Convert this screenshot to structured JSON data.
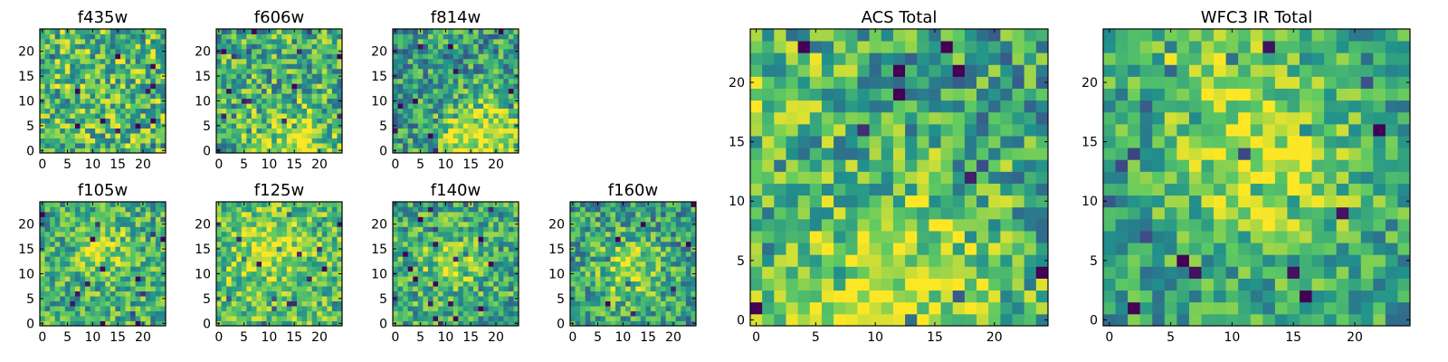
{
  "colors": {
    "background": "#ffffff",
    "axis": "#000000",
    "colormap": "viridis",
    "colormap_stops": [
      "#440154",
      "#3b528b",
      "#21918c",
      "#5ec962",
      "#fde725"
    ]
  },
  "chart_data": [
    {
      "type": "heatmap",
      "title": "f435w",
      "grid_size": [
        25,
        25
      ],
      "xticks": [
        0,
        5,
        10,
        15,
        20
      ],
      "yticks": [
        0,
        5,
        10,
        15,
        20
      ],
      "xlabel": "",
      "ylabel": "",
      "grid": false,
      "colormap": "viridis",
      "value_range": [
        0,
        1
      ],
      "pattern": {
        "base": 0.68,
        "noise": 0.32,
        "blobs": []
      }
    },
    {
      "type": "heatmap",
      "title": "f606w",
      "grid_size": [
        25,
        25
      ],
      "xticks": [
        0,
        5,
        10,
        15,
        20
      ],
      "yticks": [
        0,
        5,
        10,
        15,
        20
      ],
      "xlabel": "",
      "ylabel": "",
      "grid": false,
      "colormap": "viridis",
      "value_range": [
        0,
        1
      ],
      "pattern": {
        "base": 0.62,
        "noise": 0.32,
        "blobs": [
          {
            "cx": 15,
            "cy": 2,
            "r": 5,
            "amp": 0.3
          }
        ]
      }
    },
    {
      "type": "heatmap",
      "title": "f814w",
      "grid_size": [
        25,
        25
      ],
      "xticks": [
        0,
        5,
        10,
        15,
        20
      ],
      "yticks": [
        0,
        5,
        10,
        15,
        20
      ],
      "xlabel": "",
      "ylabel": "",
      "grid": false,
      "colormap": "viridis",
      "value_range": [
        0,
        1
      ],
      "pattern": {
        "base": 0.55,
        "noise": 0.3,
        "blobs": [
          {
            "cx": 19,
            "cy": 4,
            "r": 5,
            "amp": 0.35
          },
          {
            "cx": 12,
            "cy": 1,
            "r": 4,
            "amp": 0.25
          }
        ]
      }
    },
    {
      "type": "heatmap",
      "title": "f105w",
      "grid_size": [
        25,
        25
      ],
      "xticks": [
        0,
        5,
        10,
        15,
        20
      ],
      "yticks": [
        0,
        5,
        10,
        15,
        20
      ],
      "xlabel": "",
      "ylabel": "",
      "grid": false,
      "colormap": "viridis",
      "value_range": [
        0,
        1
      ],
      "pattern": {
        "base": 0.62,
        "noise": 0.28,
        "blobs": [
          {
            "cx": 13,
            "cy": 14,
            "r": 4,
            "amp": 0.25
          }
        ]
      }
    },
    {
      "type": "heatmap",
      "title": "f125w",
      "grid_size": [
        25,
        25
      ],
      "xticks": [
        0,
        5,
        10,
        15,
        20
      ],
      "yticks": [
        0,
        5,
        10,
        15,
        20
      ],
      "xlabel": "",
      "ylabel": "",
      "grid": false,
      "colormap": "viridis",
      "value_range": [
        0,
        1
      ],
      "pattern": {
        "base": 0.7,
        "noise": 0.26,
        "blobs": [
          {
            "cx": 10,
            "cy": 15,
            "r": 5,
            "amp": 0.2
          }
        ]
      }
    },
    {
      "type": "heatmap",
      "title": "f140w",
      "grid_size": [
        25,
        25
      ],
      "xticks": [
        0,
        5,
        10,
        15,
        20
      ],
      "yticks": [
        0,
        5,
        10,
        15,
        20
      ],
      "xlabel": "",
      "ylabel": "",
      "grid": false,
      "colormap": "viridis",
      "value_range": [
        0,
        1
      ],
      "pattern": {
        "base": 0.6,
        "noise": 0.28,
        "blobs": [
          {
            "cx": 11,
            "cy": 12,
            "r": 4,
            "amp": 0.25
          }
        ]
      }
    },
    {
      "type": "heatmap",
      "title": "f160w",
      "grid_size": [
        25,
        25
      ],
      "xticks": [
        0,
        5,
        10,
        15,
        20
      ],
      "yticks": [
        0,
        5,
        10,
        15,
        20
      ],
      "xlabel": "",
      "ylabel": "",
      "grid": false,
      "colormap": "viridis",
      "value_range": [
        0,
        1
      ],
      "pattern": {
        "base": 0.55,
        "noise": 0.28,
        "blobs": [
          {
            "cx": 11,
            "cy": 11,
            "r": 5,
            "amp": 0.3
          }
        ]
      }
    },
    {
      "type": "heatmap",
      "title": "ACS Total",
      "grid_size": [
        25,
        25
      ],
      "xticks": [
        0,
        5,
        10,
        15,
        20
      ],
      "yticks": [
        0,
        5,
        10,
        15,
        20
      ],
      "xlabel": "",
      "ylabel": "",
      "grid": false,
      "colormap": "viridis",
      "value_range": [
        0,
        1
      ],
      "pattern": {
        "base": 0.58,
        "noise": 0.3,
        "blobs": [
          {
            "cx": 12,
            "cy": 2,
            "r": 7,
            "amp": 0.35
          },
          {
            "cx": 2,
            "cy": 20,
            "r": 4,
            "amp": 0.15
          }
        ]
      }
    },
    {
      "type": "heatmap",
      "title": "WFC3 IR Total",
      "grid_size": [
        25,
        25
      ],
      "xticks": [
        0,
        5,
        10,
        15,
        20
      ],
      "yticks": [
        0,
        5,
        10,
        15,
        20
      ],
      "xlabel": "",
      "ylabel": "",
      "grid": false,
      "colormap": "viridis",
      "value_range": [
        0,
        1
      ],
      "pattern": {
        "base": 0.58,
        "noise": 0.24,
        "blobs": [
          {
            "cx": 13,
            "cy": 13,
            "r": 5,
            "amp": 0.35
          },
          {
            "cx": 8,
            "cy": 22,
            "r": 4,
            "amp": 0.2
          }
        ]
      }
    }
  ]
}
